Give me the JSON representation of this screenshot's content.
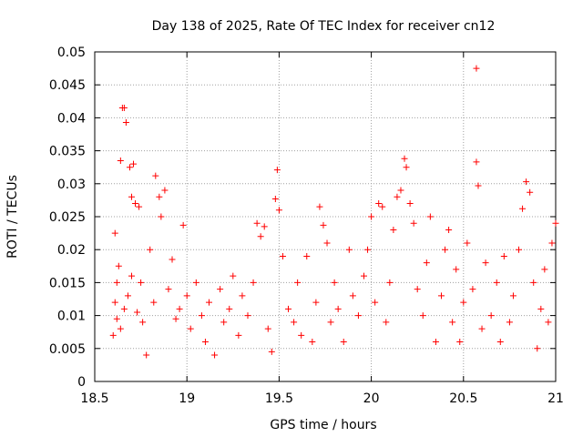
{
  "chart_data": {
    "type": "scatter",
    "title": "Day 138 of 2025, Rate Of TEC Index for receiver cn12",
    "xlabel": "GPS time / hours",
    "ylabel": "ROTI / TECUs",
    "xlim": [
      18.5,
      21
    ],
    "ylim": [
      0,
      0.05
    ],
    "x_ticks": [
      18.5,
      19,
      19.5,
      20,
      20.5,
      21
    ],
    "x_tick_labels": [
      "18.5",
      "19",
      "19.5",
      "20",
      "20.5",
      "21"
    ],
    "y_ticks": [
      0,
      0.005,
      0.01,
      0.015,
      0.02,
      0.025,
      0.03,
      0.035,
      0.04,
      0.045,
      0.05
    ],
    "y_tick_labels": [
      "0",
      "0.005",
      "0.01",
      "0.015",
      "0.02",
      "0.025",
      "0.03",
      "0.035",
      "0.04",
      "0.045",
      "0.05"
    ],
    "grid": true,
    "marker": "+",
    "color": "#ff0000",
    "series": [
      {
        "name": "ROTI",
        "points": [
          [
            18.6,
            0.007
          ],
          [
            18.61,
            0.012
          ],
          [
            18.61,
            0.0225
          ],
          [
            18.62,
            0.0095
          ],
          [
            18.62,
            0.015
          ],
          [
            18.63,
            0.0175
          ],
          [
            18.64,
            0.008
          ],
          [
            18.64,
            0.0335
          ],
          [
            18.65,
            0.0415
          ],
          [
            18.66,
            0.0415
          ],
          [
            18.66,
            0.011
          ],
          [
            18.67,
            0.0393
          ],
          [
            18.68,
            0.013
          ],
          [
            18.69,
            0.0325
          ],
          [
            18.7,
            0.028
          ],
          [
            18.7,
            0.016
          ],
          [
            18.71,
            0.033
          ],
          [
            18.72,
            0.027
          ],
          [
            18.73,
            0.0105
          ],
          [
            18.74,
            0.0265
          ],
          [
            18.75,
            0.015
          ],
          [
            18.76,
            0.009
          ],
          [
            18.78,
            0.004
          ],
          [
            18.8,
            0.02
          ],
          [
            18.82,
            0.012
          ],
          [
            18.83,
            0.0312
          ],
          [
            18.85,
            0.028
          ],
          [
            18.86,
            0.025
          ],
          [
            18.88,
            0.029
          ],
          [
            18.9,
            0.014
          ],
          [
            18.92,
            0.0185
          ],
          [
            18.94,
            0.0095
          ],
          [
            18.96,
            0.011
          ],
          [
            18.98,
            0.0237
          ],
          [
            19.0,
            0.013
          ],
          [
            19.02,
            0.008
          ],
          [
            19.05,
            0.015
          ],
          [
            19.08,
            0.01
          ],
          [
            19.1,
            0.006
          ],
          [
            19.12,
            0.012
          ],
          [
            19.15,
            0.004
          ],
          [
            19.18,
            0.014
          ],
          [
            19.2,
            0.009
          ],
          [
            19.23,
            0.011
          ],
          [
            19.25,
            0.016
          ],
          [
            19.28,
            0.007
          ],
          [
            19.3,
            0.013
          ],
          [
            19.33,
            0.01
          ],
          [
            19.36,
            0.015
          ],
          [
            19.38,
            0.024
          ],
          [
            19.4,
            0.022
          ],
          [
            19.42,
            0.0235
          ],
          [
            19.44,
            0.008
          ],
          [
            19.46,
            0.0045
          ],
          [
            19.48,
            0.0277
          ],
          [
            19.49,
            0.0321
          ],
          [
            19.5,
            0.026
          ],
          [
            19.52,
            0.019
          ],
          [
            19.55,
            0.011
          ],
          [
            19.58,
            0.009
          ],
          [
            19.6,
            0.015
          ],
          [
            19.62,
            0.007
          ],
          [
            19.65,
            0.019
          ],
          [
            19.68,
            0.006
          ],
          [
            19.7,
            0.012
          ],
          [
            19.72,
            0.0265
          ],
          [
            19.74,
            0.0237
          ],
          [
            19.76,
            0.021
          ],
          [
            19.78,
            0.009
          ],
          [
            19.8,
            0.015
          ],
          [
            19.82,
            0.011
          ],
          [
            19.85,
            0.006
          ],
          [
            19.88,
            0.02
          ],
          [
            19.9,
            0.013
          ],
          [
            19.93,
            0.01
          ],
          [
            19.96,
            0.016
          ],
          [
            19.98,
            0.02
          ],
          [
            20.0,
            0.025
          ],
          [
            20.02,
            0.012
          ],
          [
            20.04,
            0.027
          ],
          [
            20.06,
            0.0265
          ],
          [
            20.08,
            0.009
          ],
          [
            20.1,
            0.015
          ],
          [
            20.12,
            0.023
          ],
          [
            20.14,
            0.028
          ],
          [
            20.16,
            0.029
          ],
          [
            20.18,
            0.0338
          ],
          [
            20.19,
            0.0325
          ],
          [
            20.21,
            0.027
          ],
          [
            20.23,
            0.024
          ],
          [
            20.25,
            0.014
          ],
          [
            20.28,
            0.01
          ],
          [
            20.3,
            0.018
          ],
          [
            20.32,
            0.025
          ],
          [
            20.35,
            0.006
          ],
          [
            20.38,
            0.013
          ],
          [
            20.4,
            0.02
          ],
          [
            20.42,
            0.023
          ],
          [
            20.44,
            0.009
          ],
          [
            20.46,
            0.017
          ],
          [
            20.48,
            0.006
          ],
          [
            20.5,
            0.012
          ],
          [
            20.52,
            0.021
          ],
          [
            20.55,
            0.014
          ],
          [
            20.57,
            0.0475
          ],
          [
            20.57,
            0.0333
          ],
          [
            20.58,
            0.0297
          ],
          [
            20.6,
            0.008
          ],
          [
            20.62,
            0.018
          ],
          [
            20.65,
            0.01
          ],
          [
            20.68,
            0.015
          ],
          [
            20.7,
            0.006
          ],
          [
            20.72,
            0.019
          ],
          [
            20.75,
            0.009
          ],
          [
            20.77,
            0.013
          ],
          [
            20.8,
            0.02
          ],
          [
            20.82,
            0.0262
          ],
          [
            20.84,
            0.0303
          ],
          [
            20.86,
            0.0287
          ],
          [
            20.88,
            0.015
          ],
          [
            20.9,
            0.005
          ],
          [
            20.92,
            0.011
          ],
          [
            20.94,
            0.017
          ],
          [
            20.96,
            0.009
          ],
          [
            20.98,
            0.021
          ],
          [
            21.0,
            0.024
          ]
        ]
      }
    ]
  }
}
